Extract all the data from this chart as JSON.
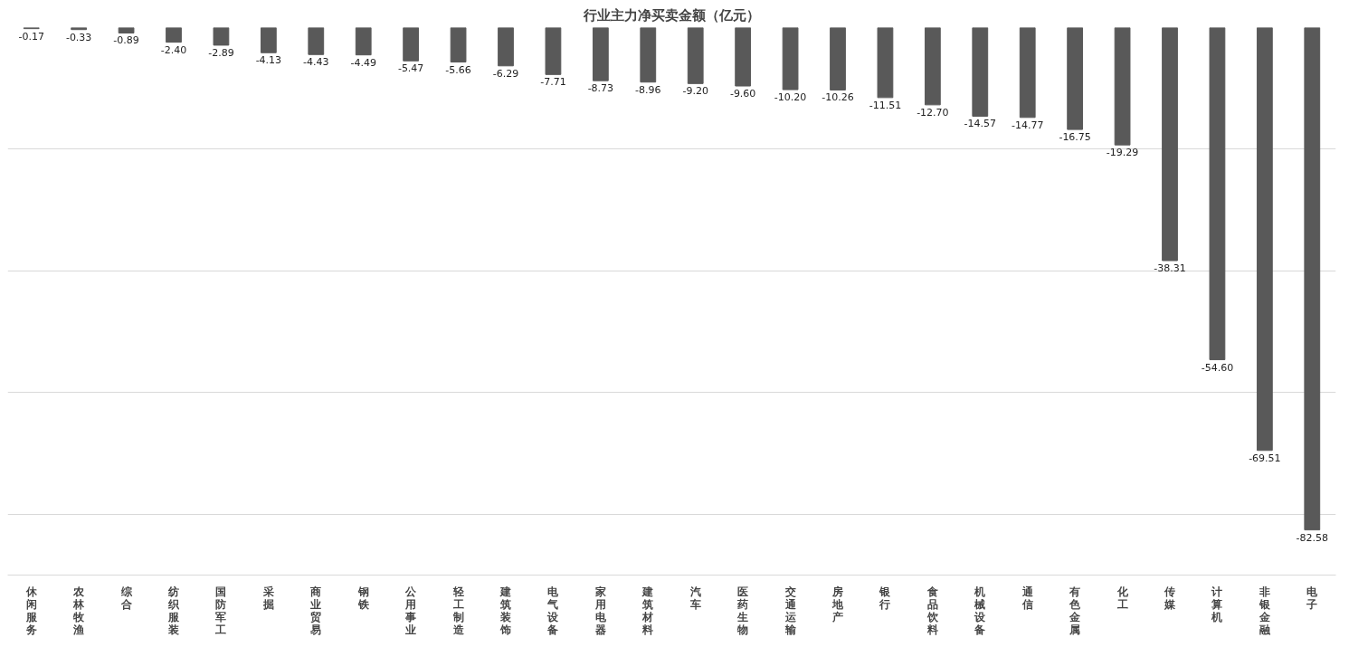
{
  "chart_data": {
    "type": "bar",
    "title": "行业主力净买卖金额（亿元）",
    "categories": [
      "休闲服务",
      "农林牧渔",
      "综合",
      "纺织服装",
      "国防军工",
      "采掘",
      "商业贸易",
      "钢铁",
      "公用事业",
      "轻工制造",
      "建筑装饰",
      "电气设备",
      "家用电器",
      "建筑材料",
      "汽车",
      "医药生物",
      "交通运输",
      "房地产",
      "银行",
      "食品饮料",
      "机械设备",
      "通信",
      "有色金属",
      "化工",
      "传媒",
      "计算机",
      "非银金融",
      "电子"
    ],
    "values": [
      -0.17,
      -0.33,
      -0.89,
      -2.4,
      -2.89,
      -4.13,
      -4.43,
      -4.49,
      -5.47,
      -5.66,
      -6.29,
      -7.71,
      -8.73,
      -8.96,
      -9.2,
      -9.6,
      -10.2,
      -10.26,
      -11.51,
      -12.7,
      -14.57,
      -14.77,
      -16.75,
      -19.29,
      -38.31,
      -54.6,
      -69.51,
      -82.58
    ],
    "value_labels": [
      "-0.17",
      "-0.33",
      "-0.89",
      "-2.40",
      "-2.89",
      "-4.13",
      "-4.43",
      "-4.49",
      "-5.47",
      "-5.66",
      "-6.29",
      "-7.71",
      "-8.73",
      "-8.96",
      "-9.20",
      "-9.60",
      "-10.20",
      "-10.26",
      "-11.51",
      "-12.70",
      "-14.57",
      "-14.77",
      "-16.75",
      "-19.29",
      "-38.31",
      "-54.60",
      "-69.51",
      "-82.58"
    ],
    "color": "#595959",
    "ylim": [
      -90,
      0
    ],
    "tick_labels": "x",
    "grid": "y"
  }
}
